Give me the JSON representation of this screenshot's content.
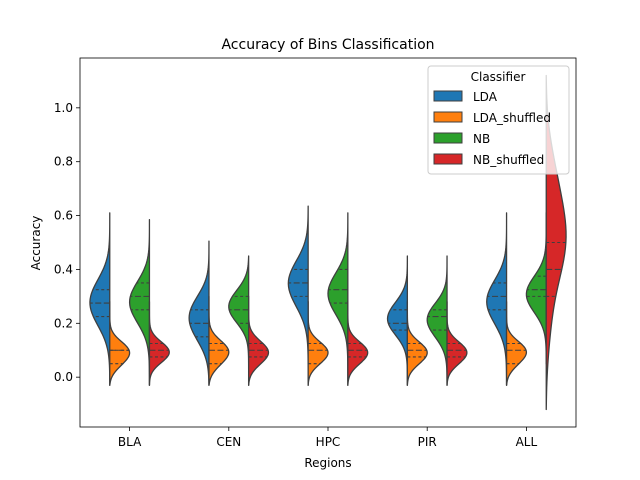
{
  "chart_data": {
    "type": "violin",
    "title": "Accuracy of Bins Classification",
    "xlabel": "Regions",
    "ylabel": "Accuracy",
    "categories": [
      "BLA",
      "CEN",
      "HPC",
      "PIR",
      "ALL"
    ],
    "ylim": [
      -0.185,
      1.185
    ],
    "yticks": [
      "0.0",
      "0.2",
      "0.4",
      "0.6",
      "0.8",
      "1.0"
    ],
    "grid": false,
    "split": true,
    "inner": "quartile",
    "legend": {
      "title": "Classifier",
      "placement": "top-right",
      "entries": [
        "LDA",
        "LDA_shuffled",
        "NB",
        "NB_shuffled"
      ]
    },
    "series": [
      {
        "name": "LDA",
        "color": "#1f77b4",
        "side": "left",
        "violins": [
          {
            "min": -0.03,
            "max": 0.61,
            "q1": 0.225,
            "median": 0.275,
            "q3": 0.325,
            "peaks": [
              [
                0.28,
                1.0
              ],
              [
                0.22,
                0.7
              ],
              [
                0.33,
                0.6
              ]
            ]
          },
          {
            "min": -0.03,
            "max": 0.505,
            "q1": 0.15,
            "median": 0.2,
            "q3": 0.25,
            "peaks": [
              [
                0.2,
                1.0
              ],
              [
                0.27,
                0.8
              ],
              [
                0.13,
                0.4
              ]
            ]
          },
          {
            "min": -0.03,
            "max": 0.635,
            "q1": 0.3,
            "median": 0.35,
            "q3": 0.4,
            "peaks": [
              [
                0.375,
                1.0
              ],
              [
                0.3,
                0.5
              ]
            ]
          },
          {
            "min": -0.03,
            "max": 0.45,
            "q1": 0.175,
            "median": 0.2,
            "q3": 0.25,
            "peaks": [
              [
                0.2,
                1.0
              ],
              [
                0.25,
                0.6
              ]
            ]
          },
          {
            "min": -0.03,
            "max": 0.61,
            "q1": 0.25,
            "median": 0.3,
            "q3": 0.35,
            "peaks": [
              [
                0.3,
                1.0
              ],
              [
                0.23,
                0.5
              ]
            ]
          }
        ]
      },
      {
        "name": "LDA_shuffled",
        "color": "#ff7f0e",
        "side": "right",
        "violins": [
          {
            "min": -0.03,
            "max": 0.28,
            "q1": 0.05,
            "median": 0.1,
            "q3": 0.1,
            "peaks": [
              [
                0.1,
                1.0
              ],
              [
                0.05,
                0.6
              ]
            ]
          },
          {
            "min": -0.03,
            "max": 0.3,
            "q1": 0.05,
            "median": 0.1,
            "q3": 0.125,
            "peaks": [
              [
                0.1,
                1.0
              ],
              [
                0.05,
                0.5
              ]
            ]
          },
          {
            "min": -0.03,
            "max": 0.28,
            "q1": 0.05,
            "median": 0.1,
            "q3": 0.125,
            "peaks": [
              [
                0.1,
                1.0
              ],
              [
                0.06,
                0.6
              ]
            ]
          },
          {
            "min": -0.03,
            "max": 0.28,
            "q1": 0.075,
            "median": 0.1,
            "q3": 0.125,
            "peaks": [
              [
                0.1,
                1.0
              ],
              [
                0.06,
                0.6
              ]
            ]
          },
          {
            "min": -0.03,
            "max": 0.28,
            "q1": 0.05,
            "median": 0.1,
            "q3": 0.125,
            "peaks": [
              [
                0.1,
                1.0
              ],
              [
                0.05,
                0.5
              ]
            ]
          }
        ]
      },
      {
        "name": "NB",
        "color": "#2ca02c",
        "side": "left",
        "violins": [
          {
            "min": -0.03,
            "max": 0.585,
            "q1": 0.25,
            "median": 0.3,
            "q3": 0.35,
            "peaks": [
              [
                0.3,
                1.0
              ],
              [
                0.24,
                0.6
              ]
            ]
          },
          {
            "min": -0.03,
            "max": 0.45,
            "q1": 0.2,
            "median": 0.25,
            "q3": 0.3,
            "peaks": [
              [
                0.25,
                1.0
              ],
              [
                0.3,
                0.6
              ]
            ]
          },
          {
            "min": -0.03,
            "max": 0.61,
            "q1": 0.275,
            "median": 0.325,
            "q3": 0.4,
            "peaks": [
              [
                0.33,
                1.0
              ],
              [
                0.28,
                0.6
              ]
            ]
          },
          {
            "min": -0.03,
            "max": 0.45,
            "q1": 0.175,
            "median": 0.225,
            "q3": 0.25,
            "peaks": [
              [
                0.23,
                1.0
              ],
              [
                0.17,
                0.5
              ]
            ]
          },
          {
            "min": 0.05,
            "max": 0.61,
            "q1": 0.3,
            "median": 0.325,
            "q3": 0.375,
            "peaks": [
              [
                0.32,
                1.0
              ],
              [
                0.28,
                0.6
              ]
            ]
          }
        ]
      },
      {
        "name": "NB_shuffled",
        "color": "#d62728",
        "side": "right",
        "violins": [
          {
            "min": -0.03,
            "max": 0.28,
            "q1": 0.075,
            "median": 0.1,
            "q3": 0.125,
            "peaks": [
              [
                0.1,
                1.0
              ],
              [
                0.07,
                0.6
              ]
            ]
          },
          {
            "min": -0.03,
            "max": 0.3,
            "q1": 0.075,
            "median": 0.1,
            "q3": 0.125,
            "peaks": [
              [
                0.1,
                1.0
              ],
              [
                0.06,
                0.6
              ]
            ]
          },
          {
            "min": -0.03,
            "max": 0.28,
            "q1": 0.075,
            "median": 0.1,
            "q3": 0.125,
            "peaks": [
              [
                0.1,
                1.0
              ],
              [
                0.06,
                0.6
              ]
            ]
          },
          {
            "min": -0.03,
            "max": 0.28,
            "q1": 0.075,
            "median": 0.1,
            "q3": 0.125,
            "peaks": [
              [
                0.1,
                1.0
              ],
              [
                0.06,
                0.6
              ]
            ]
          },
          {
            "min": -0.12,
            "max": 1.12,
            "q1": 0.3,
            "median": 0.4,
            "q3": 0.5,
            "peaks": [
              [
                0.5,
                1.0
              ],
              [
                0.75,
                0.5
              ],
              [
                0.2,
                0.25
              ]
            ]
          }
        ]
      }
    ]
  }
}
